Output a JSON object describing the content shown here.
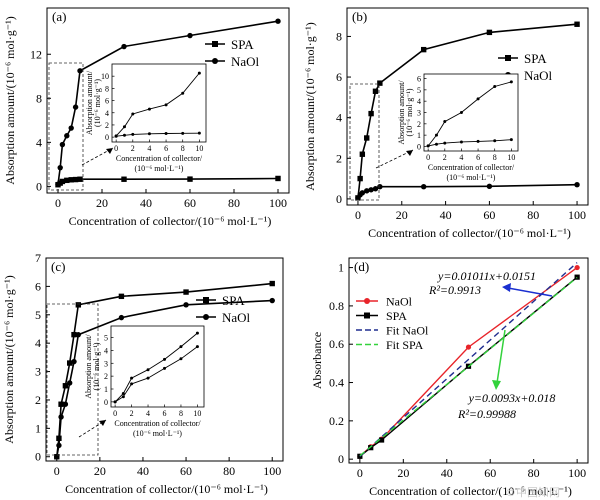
{
  "chart_data": [
    {
      "panel": "(a)",
      "type": "line",
      "xlabel": "Concentration of collector/(10⁻⁶ mol·L⁻¹)",
      "ylabel": "Absorption amount/(10⁻⁶ mol·g⁻¹)",
      "xlim": [
        -5,
        105
      ],
      "ylim": [
        -0.6,
        16.2
      ],
      "xticks": [
        0,
        20,
        40,
        60,
        80,
        100
      ],
      "yticks": [
        0,
        4,
        8,
        12
      ],
      "legend": "top-right",
      "series": [
        {
          "name": "SPA",
          "marker": "square",
          "x": [
            0,
            1,
            2,
            4,
            6,
            8,
            10,
            30,
            60,
            100
          ],
          "y": [
            0.15,
            0.3,
            0.45,
            0.55,
            0.6,
            0.62,
            0.65,
            0.65,
            0.66,
            0.72
          ]
        },
        {
          "name": "NaOl",
          "marker": "circle",
          "x": [
            0,
            1,
            2,
            4,
            6,
            8,
            10,
            30,
            60,
            100
          ],
          "y": [
            0.2,
            1.7,
            3.8,
            4.6,
            5.3,
            7.2,
            10.5,
            12.7,
            13.7,
            15.0
          ]
        }
      ],
      "inset": {
        "xlabel": "Concentration of collector/ (10⁻⁶ mol·L⁻¹)",
        "ylabel": [
          "Absorption amount/",
          "(10⁻⁶ mol·g⁻¹)"
        ],
        "xlim": [
          -0.5,
          10.8
        ],
        "ylim": [
          -0.8,
          12
        ],
        "xticks": [
          0,
          2,
          4,
          6,
          8,
          10
        ],
        "yticks": [
          0,
          2,
          4,
          6,
          8,
          10
        ],
        "series": [
          {
            "x": [
              0,
              1,
              2,
              4,
              6,
              8,
              10
            ],
            "y": [
              0.2,
              1.7,
              3.8,
              4.6,
              5.3,
              7.2,
              10.5
            ]
          },
          {
            "x": [
              0,
              1,
              2,
              4,
              6,
              8,
              10
            ],
            "y": [
              0.15,
              0.3,
              0.45,
              0.55,
              0.6,
              0.62,
              0.65
            ]
          }
        ]
      }
    },
    {
      "panel": "(b)",
      "type": "line",
      "xlabel": "Concentration of collector/(10⁻⁶ mol·L⁻¹)",
      "ylabel": "Absorption amount/(10⁻⁶ mol·g⁻¹)",
      "xlim": [
        -5,
        105
      ],
      "ylim": [
        -0.3,
        9.4
      ],
      "xticks": [
        0,
        20,
        40,
        60,
        80,
        100
      ],
      "yticks": [
        0,
        2,
        4,
        6,
        8
      ],
      "legend": "top-right",
      "series": [
        {
          "name": "SPA",
          "marker": "square",
          "x": [
            0,
            1,
            2,
            4,
            6,
            8,
            10,
            30,
            60,
            100
          ],
          "y": [
            0.05,
            1.0,
            2.2,
            3.0,
            4.2,
            5.3,
            5.7,
            7.35,
            8.2,
            8.6
          ]
        },
        {
          "name": "NaOl",
          "marker": "circle",
          "x": [
            0,
            1,
            2,
            4,
            6,
            8,
            10,
            30,
            60,
            100
          ],
          "y": [
            0.05,
            0.2,
            0.3,
            0.4,
            0.45,
            0.5,
            0.6,
            0.6,
            0.62,
            0.7
          ]
        }
      ],
      "inset": {
        "xlabel": "Concentration of collector/ (10⁻⁶ mol·L⁻¹)",
        "ylabel": [
          "Absorption amount/",
          "(10⁻⁶ mol·g⁻¹)"
        ],
        "xlim": [
          -0.5,
          10.8
        ],
        "ylim": [
          -0.4,
          6.4
        ],
        "xticks": [
          0,
          2,
          4,
          6,
          8,
          10
        ],
        "yticks": [
          0,
          1,
          2,
          3,
          4,
          5,
          6
        ],
        "series": [
          {
            "x": [
              0,
              1,
              2,
              4,
              6,
              8,
              10
            ],
            "y": [
              0.05,
              1.0,
              2.2,
              3.0,
              4.2,
              5.3,
              5.7
            ]
          },
          {
            "x": [
              0,
              1,
              2,
              4,
              6,
              8,
              10
            ],
            "y": [
              0.05,
              0.2,
              0.3,
              0.4,
              0.45,
              0.5,
              0.6
            ]
          }
        ]
      }
    },
    {
      "panel": "(c)",
      "type": "line",
      "xlabel": "Concentration of collector/(10⁻⁶ mol·L⁻¹)",
      "ylabel": "Absorption amount/(10⁻⁶ mol·g⁻¹)",
      "xlim": [
        -5,
        105
      ],
      "ylim": [
        -0.15,
        7.0
      ],
      "xticks": [
        0,
        20,
        40,
        60,
        80,
        100
      ],
      "yticks": [
        0,
        1,
        2,
        3,
        4,
        5,
        6,
        7
      ],
      "legend": "top-right",
      "series": [
        {
          "name": "SPA",
          "marker": "square",
          "x": [
            0,
            1,
            2,
            4,
            6,
            8,
            10,
            30,
            60,
            100
          ],
          "y": [
            0.0,
            0.65,
            1.85,
            2.5,
            3.3,
            4.3,
            5.35,
            5.65,
            5.8,
            6.1
          ]
        },
        {
          "name": "NaOl",
          "marker": "circle",
          "x": [
            0,
            1,
            2,
            4,
            6,
            8,
            10,
            30,
            60,
            100
          ],
          "y": [
            0.0,
            0.4,
            1.4,
            1.85,
            2.6,
            3.35,
            4.3,
            4.9,
            5.35,
            5.5
          ]
        }
      ],
      "inset": {
        "xlabel": "Concentration of collector/ (10⁻⁶ mol·L⁻¹)",
        "ylabel": [
          "Absorption amount/",
          "(10⁻⁶ mol·g⁻¹)"
        ],
        "xlim": [
          -0.5,
          10.8
        ],
        "ylim": [
          -0.4,
          5.9
        ],
        "xticks": [
          0,
          2,
          4,
          6,
          8,
          10
        ],
        "yticks": [
          0,
          1,
          2,
          3,
          4,
          5
        ],
        "series": [
          {
            "x": [
              0,
              1,
              2,
              4,
              6,
              8,
              10
            ],
            "y": [
              0.0,
              0.65,
              1.85,
              2.5,
              3.3,
              4.3,
              5.35
            ]
          },
          {
            "x": [
              0,
              1,
              2,
              4,
              6,
              8,
              10
            ],
            "y": [
              0.0,
              0.4,
              1.4,
              1.85,
              2.6,
              3.35,
              4.3
            ]
          }
        ]
      }
    },
    {
      "panel": "(d)",
      "type": "line",
      "xlabel": "Concentration of collector/(10⁻⁶ mol·L⁻¹)",
      "ylabel": "Absorbance",
      "xlim": [
        -5,
        105
      ],
      "ylim": [
        -0.02,
        1.05
      ],
      "xticks": [
        0,
        20,
        40,
        60,
        80,
        100
      ],
      "yticks": [
        0,
        0.2,
        0.4,
        0.6,
        0.8,
        1.0
      ],
      "legend": "left",
      "series": [
        {
          "name": "NaOl",
          "color": "#e8242a",
          "marker": "circle",
          "x": [
            0,
            5,
            10,
            50,
            100
          ],
          "y": [
            0.015,
            0.065,
            0.105,
            0.585,
            1.0
          ]
        },
        {
          "name": "SPA",
          "color": "#000000",
          "marker": "square",
          "x": [
            0,
            5,
            10,
            50,
            100
          ],
          "y": [
            0.015,
            0.06,
            0.1,
            0.485,
            0.95
          ]
        },
        {
          "name": "Fit NaOl",
          "color": "#1f2d8f",
          "style": "dashed",
          "x": [
            0,
            100
          ],
          "y": [
            0.0151,
            1.0261
          ]
        },
        {
          "name": "Fit SPA",
          "color": "#33d23c",
          "style": "dashed",
          "x": [
            0,
            100
          ],
          "y": [
            0.018,
            0.948
          ]
        }
      ],
      "annotations": [
        {
          "line1": "y=0.01011x+0.0151",
          "line2": "R²=0.9913",
          "arrow_color": "#1a2fd0"
        },
        {
          "line1": "y=0.0093x+0.018",
          "line2": "R²=0.99988",
          "arrow_color": "#33d23c"
        }
      ]
    }
  ],
  "watermark": "©中国知网"
}
